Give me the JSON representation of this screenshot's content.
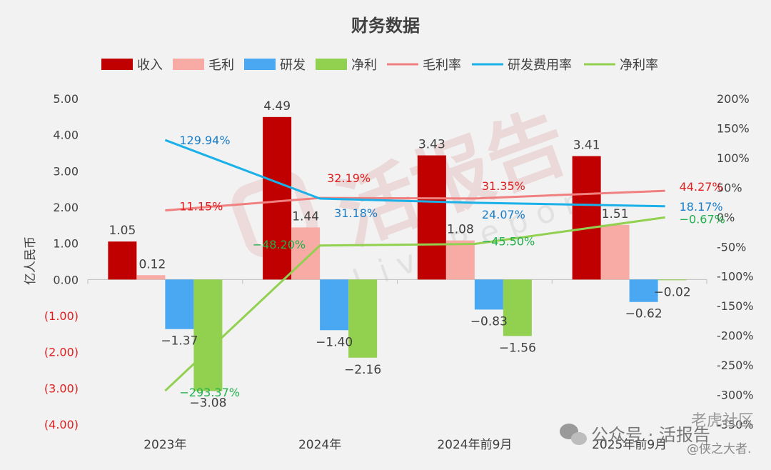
{
  "chart_data": {
    "type": "bar",
    "title": "财务数据",
    "categories": [
      "2023年",
      "2024年",
      "2024年前9月",
      "2025年前9月"
    ],
    "ylabel": "亿人民币",
    "ylim": [
      -4,
      5
    ],
    "y_ticks": [
      "5.00",
      "4.00",
      "3.00",
      "2.00",
      "1.00",
      "0.00",
      "(1.00)",
      "(2.00)",
      "(3.00)",
      "(4.00)"
    ],
    "y2lim": [
      -350,
      200
    ],
    "y2_ticks": [
      "200%",
      "150%",
      "100%",
      "50%",
      "0%",
      "-50%",
      "-100%",
      "-150%",
      "-200%",
      "-250%",
      "-300%",
      "-350%"
    ],
    "legend_position": "top",
    "grid": false,
    "bar_series": [
      {
        "name": "收入",
        "color": "#c00000",
        "values": [
          1.05,
          4.49,
          3.43,
          3.41
        ],
        "labels": [
          "1.05",
          "4.49",
          "3.43",
          "3.41"
        ]
      },
      {
        "name": "毛利",
        "color": "#f8aba4",
        "values": [
          0.12,
          1.44,
          1.08,
          1.51
        ],
        "labels": [
          "0.12",
          "1.44",
          "1.08",
          "1.51"
        ]
      },
      {
        "name": "研发",
        "color": "#4aa8f2",
        "values": [
          -1.37,
          -1.4,
          -0.83,
          -0.62
        ],
        "labels": [
          "−1.37",
          "−1.40",
          "−0.83",
          "−0.62"
        ]
      },
      {
        "name": "净利",
        "color": "#92d050",
        "values": [
          -3.08,
          -2.16,
          -1.56,
          -0.02
        ],
        "labels": [
          "−3.08",
          "−2.16",
          "−1.56",
          "−0.02"
        ]
      }
    ],
    "line_series": [
      {
        "name": "毛利率",
        "color": "#f08080",
        "label_color": "#e02020",
        "values": [
          11.15,
          32.19,
          31.35,
          44.27
        ],
        "labels": [
          "11.15%",
          "32.19%",
          "31.35%",
          "44.27%"
        ]
      },
      {
        "name": "研发费用率",
        "color": "#1ab0e8",
        "label_color": "#1a7ec8",
        "values": [
          129.94,
          31.18,
          24.07,
          18.17
        ],
        "labels": [
          "129.94%",
          "31.18%",
          "24.07%",
          "18.17%"
        ]
      },
      {
        "name": "净利率",
        "color": "#92d050",
        "label_color": "#22b14c",
        "values": [
          -293.37,
          -48.2,
          -45.5,
          -0.67
        ],
        "labels": [
          "−293.37%",
          "−48.20%",
          "−45.50%",
          "−0.67%"
        ]
      }
    ]
  },
  "watermarks": {
    "center_logo_text": "活报告",
    "center_logo_sub": "LiveReport",
    "footer_wechat": "公众号 · 活报告",
    "footer_site": "老虎社区",
    "footer_user": "@侠之大者."
  }
}
